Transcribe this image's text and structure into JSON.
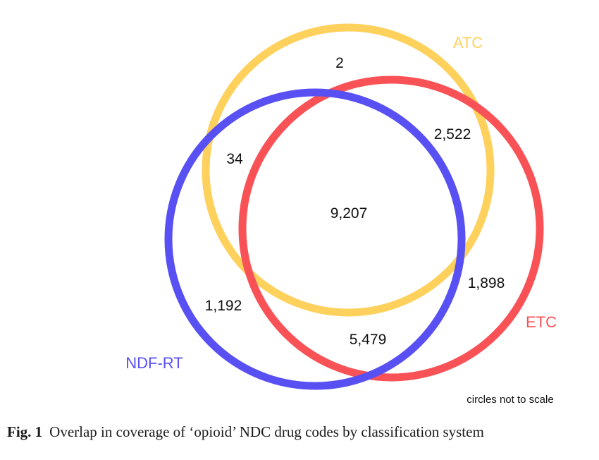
{
  "sets": [
    {
      "key": "atc",
      "label": "ATC",
      "color": "#FDD15C"
    },
    {
      "key": "etc",
      "label": "ETC",
      "color": "#F95256"
    },
    {
      "key": "ndfrt",
      "label": "NDF-RT",
      "color": "#5850F3"
    }
  ],
  "regions": {
    "atc_only": "2",
    "atc_ndfrt": "34",
    "atc_etc": "2,522",
    "all_three": "9,207",
    "etc_only": "1,898",
    "ndfrt_only": "1,192",
    "etc_ndfrt": "5,479"
  },
  "note": "circles not to scale",
  "caption": {
    "figure": "Fig. 1",
    "text": "Overlap in coverage of ‘opioid’ NDC drug codes by classification system"
  }
}
